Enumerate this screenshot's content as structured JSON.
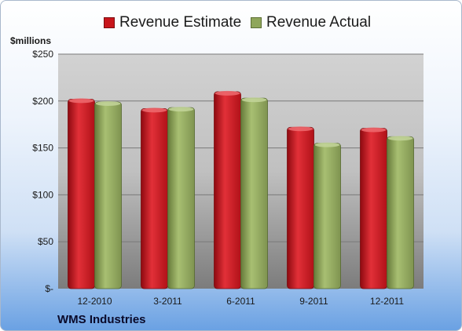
{
  "chart_data": {
    "type": "bar",
    "categories": [
      "12-2010",
      "3-2011",
      "6-2011",
      "9-2011",
      "12-2011"
    ],
    "series": [
      {
        "name": "Revenue Estimate",
        "values": [
          202,
          192,
          210,
          172,
          171
        ],
        "color": "#c8151b"
      },
      {
        "name": "Revenue Actual",
        "values": [
          199,
          193,
          203,
          155,
          162
        ],
        "color": "#8fa65a"
      }
    ],
    "ylabel": "$millions",
    "ylim": [
      0,
      250
    ],
    "yticks": [
      0,
      50,
      100,
      150,
      200,
      250
    ],
    "ytick_labels": [
      "$-",
      "$50",
      "$100",
      "$150",
      "$200",
      "$250"
    ],
    "grid": true,
    "legend_position": "top",
    "annotation": "WMS Industries"
  }
}
